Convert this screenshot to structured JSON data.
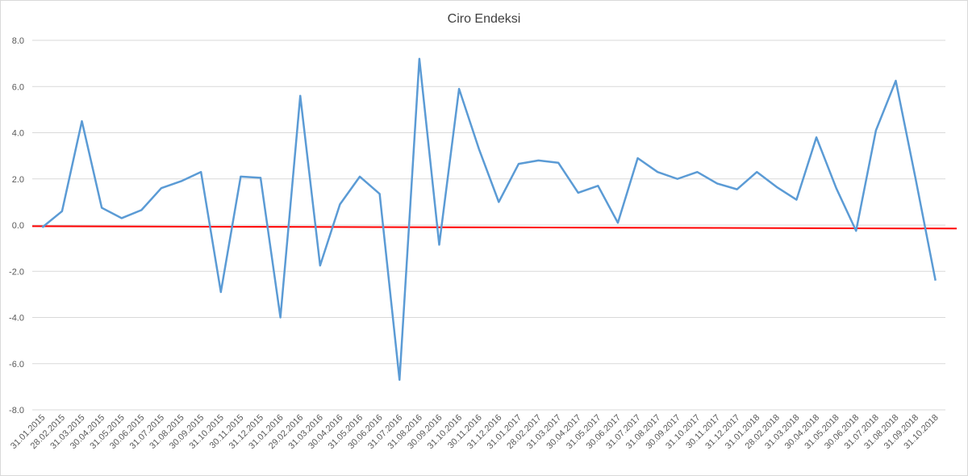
{
  "chart_data": {
    "type": "line",
    "title": "Ciro Endeksi",
    "categories": [
      "31.01.2015",
      "28.02.2015",
      "31.03.2015",
      "30.04.2015",
      "31.05.2015",
      "30.06.2015",
      "31.07.2015",
      "31.08.2015",
      "30.09.2015",
      "31.10.2015",
      "30.11.2015",
      "31.12.2015",
      "31.01.2016",
      "29.02.2016",
      "31.03.2016",
      "30.04.2016",
      "31.05.2016",
      "30.06.2016",
      "31.07.2016",
      "31.08.2016",
      "30.09.2016",
      "31.10.2016",
      "30.11.2016",
      "31.12.2016",
      "31.01.2017",
      "28.02.2017",
      "31.03.2017",
      "30.04.2017",
      "31.05.2017",
      "30.06.2017",
      "31.07.2017",
      "31.08.2017",
      "30.09.2017",
      "31.10.2017",
      "30.11.2017",
      "31.12.2017",
      "31.01.2018",
      "28.02.2018",
      "31.03.2018",
      "30.04.2018",
      "31.05.2018",
      "30.06.2018",
      "31.07.2018",
      "31.08.2018",
      "31.09.2018",
      "31.10.2018"
    ],
    "series": [
      {
        "color": "#5b9bd5",
        "values": [
          -0.1,
          0.6,
          4.5,
          0.75,
          0.3,
          0.65,
          1.6,
          1.9,
          2.3,
          -2.9,
          2.1,
          2.05,
          -4.0,
          5.6,
          -1.75,
          0.9,
          2.1,
          1.35,
          -6.7,
          7.2,
          -0.85,
          5.9,
          3.3,
          1.0,
          2.65,
          2.8,
          2.7,
          1.4,
          1.7,
          0.1,
          2.9,
          2.3,
          2.0,
          2.3,
          1.8,
          1.55,
          2.3,
          1.65,
          1.1,
          3.8,
          1.6,
          -0.25,
          4.1,
          6.25,
          2.0,
          -2.4
        ]
      }
    ],
    "trendline": {
      "color": "#ff0000",
      "values": [
        -0.05,
        -0.15
      ]
    },
    "ylim": [
      -8,
      8
    ],
    "yticks": [
      {
        "value": -8,
        "label": "-8.0"
      },
      {
        "value": -6,
        "label": "-6.0"
      },
      {
        "value": -4,
        "label": "-4.0"
      },
      {
        "value": -2,
        "label": "-2.0"
      },
      {
        "value": 0,
        "label": "0.0"
      },
      {
        "value": 2,
        "label": "2.0"
      },
      {
        "value": 4,
        "label": "4.0"
      },
      {
        "value": 6,
        "label": "6.0"
      },
      {
        "value": 8,
        "label": "8.0"
      }
    ],
    "grid": true
  }
}
